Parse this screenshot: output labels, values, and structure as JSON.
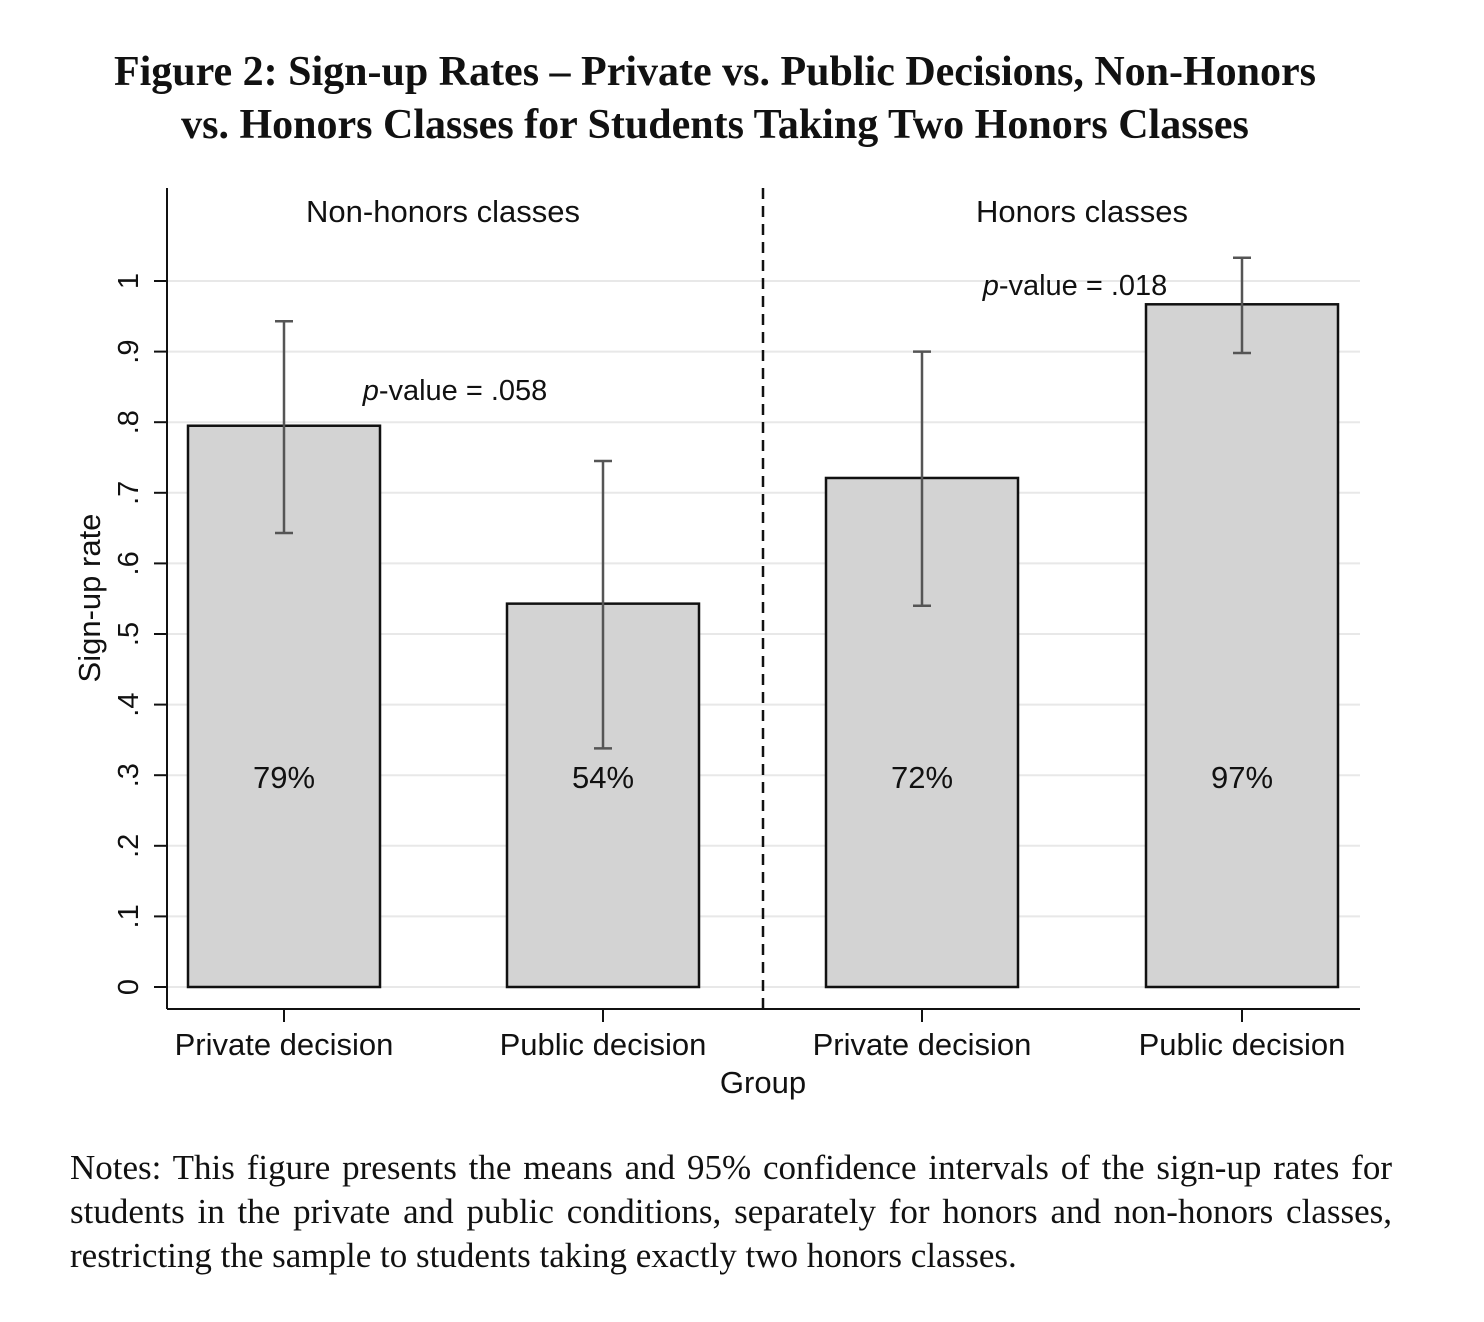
{
  "figure": {
    "title_line1": "Figure 2: Sign-up Rates – Private vs. Public Decisions, Non-Honors",
    "title_line2": "vs. Honors Classes for Students Taking Two Honors Classes",
    "notes": "Notes: This figure presents the means and 95% confidence intervals of the sign-up rates for students in the private and public conditions, separately for honors and non-honors classes, restricting the sample to students taking exactly two honors classes."
  },
  "chart_data": {
    "type": "bar",
    "xlabel": "Group",
    "ylabel": "Sign-up rate",
    "ylim": [
      0,
      1
    ],
    "yticks": [
      "0",
      ".1",
      ".2",
      ".3",
      ".4",
      ".5",
      ".6",
      ".7",
      ".8",
      ".9",
      "1"
    ],
    "grid": true,
    "panels": [
      {
        "label": "Non-honors classes",
        "p_value_prefix": "p",
        "p_value_text": "-value = .058",
        "bars": [
          {
            "category": "Private decision",
            "value": 0.795,
            "ci": [
              0.643,
              0.943
            ],
            "label": "79%"
          },
          {
            "category": "Public decision",
            "value": 0.543,
            "ci": [
              0.338,
              0.745
            ],
            "label": "54%"
          }
        ]
      },
      {
        "label": "Honors classes",
        "p_value_prefix": "p",
        "p_value_text": "-value = .018",
        "bars": [
          {
            "category": "Private decision",
            "value": 0.721,
            "ci": [
              0.54,
              0.9
            ],
            "label": "72%"
          },
          {
            "category": "Public decision",
            "value": 0.967,
            "ci": [
              0.898,
              1.033
            ],
            "label": "97%"
          }
        ]
      }
    ],
    "colors": {
      "bar_fill": "#d3d3d3",
      "bar_stroke": "#111111",
      "error_bar": "#555555",
      "grid": "#e8e8e8"
    }
  }
}
